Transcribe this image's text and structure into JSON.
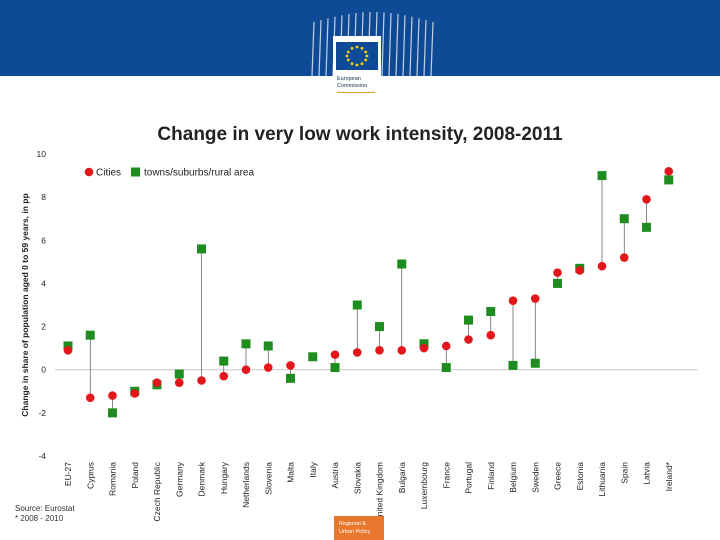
{
  "header": {
    "org_line1": "European",
    "org_line2": "Commission",
    "brand_color": "#0f4a97"
  },
  "chart_data": {
    "type": "scatter",
    "title": "Change in very low work intensity, 2008-2011",
    "ylabel": "Change in share of population  aged 0 to 59 years, in pp",
    "xlabel": "",
    "ylim": [
      -4,
      10
    ],
    "yticks": [
      "-4",
      "-2",
      "0",
      "2",
      "4",
      "6",
      "8",
      "10"
    ],
    "grid": false,
    "legend": "top-left",
    "categories": [
      "EU-27",
      "Cyprus",
      "Romania",
      "Poland",
      "Czech Republic",
      "Germany",
      "Denmark",
      "Hungary",
      "Netherlands",
      "Slovenia",
      "Malta",
      "Italy",
      "Austria",
      "Slovakia",
      "United Kingdom",
      "Bulgaria",
      "Luxembourg",
      "France",
      "Portugal",
      "Finland",
      "Belgium",
      "Sweden",
      "Greece",
      "Estonia",
      "Lithuania",
      "Spain",
      "Latvia",
      "Ireland*"
    ],
    "series": [
      {
        "name": "Cities",
        "color": "#e3171b",
        "marker": "circle",
        "values": [
          0.9,
          -1.3,
          -1.2,
          -1.1,
          -0.6,
          -0.6,
          -0.5,
          -0.3,
          0.0,
          0.1,
          0.2,
          null,
          0.7,
          0.8,
          0.9,
          0.9,
          1.0,
          1.1,
          1.4,
          1.6,
          3.2,
          3.3,
          4.5,
          4.6,
          4.8,
          5.2,
          7.9,
          9.2
        ]
      },
      {
        "name": "towns/suburbs/rural area",
        "color": "#1e8c1e",
        "marker": "square",
        "values": [
          1.1,
          1.6,
          -2.0,
          -1.0,
          -0.7,
          -0.2,
          5.6,
          0.4,
          1.2,
          1.1,
          -0.4,
          0.6,
          0.1,
          3.0,
          2.0,
          4.9,
          1.2,
          0.1,
          2.3,
          2.7,
          0.2,
          0.3,
          4.0,
          4.7,
          9.0,
          7.0,
          6.6,
          8.8
        ]
      }
    ]
  },
  "footer": {
    "source_line1": "Source: Eurostat",
    "source_line2": "* 2008 - 2010",
    "badge_line1": "Regional &",
    "badge_line2": "Urban Policy",
    "badge_color": "#e8772e"
  }
}
